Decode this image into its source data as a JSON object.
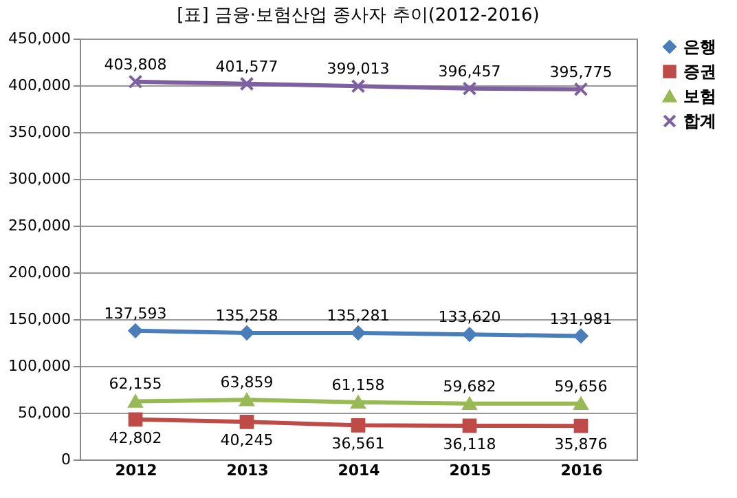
{
  "chart_data": {
    "type": "line",
    "title": "[표] 금융·보험산업 종사자 추이(2012-2016)",
    "categories": [
      "2012",
      "2013",
      "2014",
      "2015",
      "2016"
    ],
    "series": [
      {
        "name": "은행",
        "color": "#4a7ebb",
        "marker": "diamond",
        "values": [
          137593,
          135258,
          135281,
          133620,
          131981
        ],
        "value_labels": [
          "137,593",
          "135,258",
          "135,281",
          "133,620",
          "131,981"
        ]
      },
      {
        "name": "증권",
        "color": "#be4b48",
        "marker": "square",
        "values": [
          42802,
          40245,
          36561,
          36118,
          35876
        ],
        "value_labels": [
          "42,802",
          "40,245",
          "36,561",
          "36,118",
          "35,876"
        ]
      },
      {
        "name": "보험",
        "color": "#98b954",
        "marker": "triangle",
        "values": [
          62155,
          63859,
          61158,
          59682,
          59656
        ],
        "value_labels": [
          "62,155",
          "63,859",
          "61,158",
          "59,682",
          "59,656"
        ]
      },
      {
        "name": "합계",
        "color": "#7d60a0",
        "marker": "cross",
        "values": [
          403808,
          401577,
          399013,
          396457,
          395775
        ],
        "value_labels": [
          "403,808",
          "401,577",
          "399,013",
          "396,457",
          "395,775"
        ]
      }
    ],
    "ylim": [
      0,
      450000
    ],
    "yticks": [
      0,
      {
        "value": 50000,
        "label": "50,000"
      },
      {
        "value": 100000,
        "label": "100,000"
      },
      {
        "value": 150000,
        "label": "150,000"
      },
      {
        "value": 200000,
        "label": "200,000"
      },
      {
        "value": 250000,
        "label": "250,000"
      },
      {
        "value": 300000,
        "label": "300,000"
      },
      {
        "value": 350000,
        "label": "350,000"
      },
      {
        "value": 400000,
        "label": "400,000"
      },
      {
        "value": 450000,
        "label": "450,000"
      }
    ],
    "grid": "y",
    "legend": "right",
    "line_style": "solid"
  }
}
